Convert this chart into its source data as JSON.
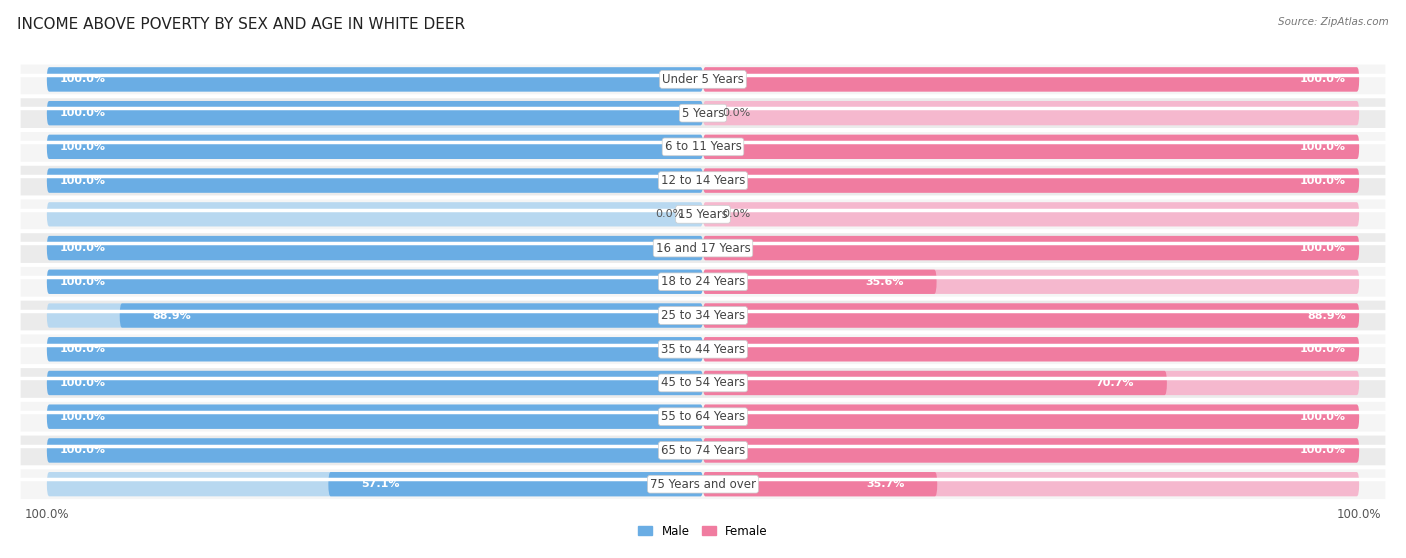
{
  "title": "INCOME ABOVE POVERTY BY SEX AND AGE IN WHITE DEER",
  "source": "Source: ZipAtlas.com",
  "categories": [
    "Under 5 Years",
    "5 Years",
    "6 to 11 Years",
    "12 to 14 Years",
    "15 Years",
    "16 and 17 Years",
    "18 to 24 Years",
    "25 to 34 Years",
    "35 to 44 Years",
    "45 to 54 Years",
    "55 to 64 Years",
    "65 to 74 Years",
    "75 Years and over"
  ],
  "male": [
    100.0,
    100.0,
    100.0,
    100.0,
    0.0,
    100.0,
    100.0,
    88.9,
    100.0,
    100.0,
    100.0,
    100.0,
    57.1
  ],
  "female": [
    100.0,
    0.0,
    100.0,
    100.0,
    0.0,
    100.0,
    35.6,
    100.0,
    100.0,
    70.7,
    100.0,
    100.0,
    35.7
  ],
  "male_color": "#6aade4",
  "female_color": "#f07ca0",
  "male_light_color": "#b8d8f0",
  "female_light_color": "#f5b8ce",
  "male_label": "Male",
  "female_label": "Female",
  "bg_color": "#f0f0f0",
  "bar_bg_color": "#e0e0e0",
  "row_bg_light": "#f8f8f8",
  "row_bg_dark": "#eeeeee",
  "title_fontsize": 11,
  "label_fontsize": 8.5,
  "value_fontsize": 8,
  "axis_label_fontsize": 8.5
}
